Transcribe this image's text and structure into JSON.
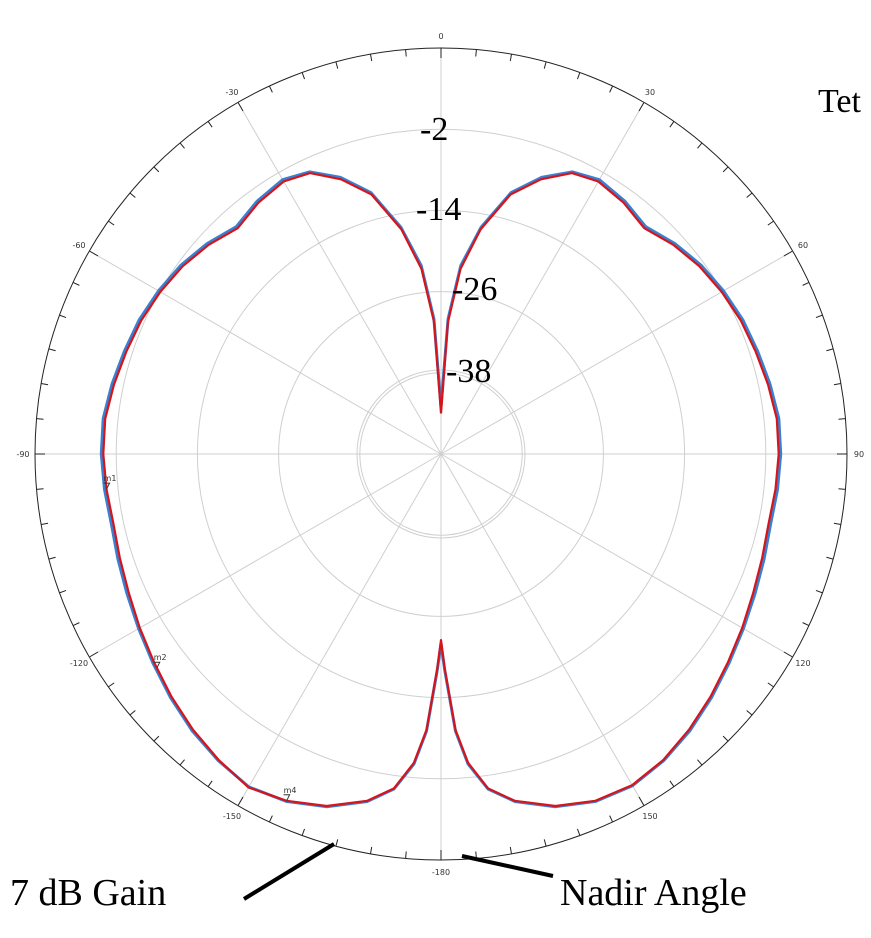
{
  "chart_data": {
    "type": "polar-line",
    "title": "Tet",
    "radial_axis": {
      "ring_labels": [
        "-2",
        "-14",
        "-26",
        "-38"
      ],
      "ring_values": [
        -2,
        -14,
        -26,
        -38
      ],
      "range": [
        -50,
        10
      ]
    },
    "angular_axis": {
      "tick_labels": [
        "0",
        "30",
        "60",
        "90",
        "120",
        "150",
        "-180",
        "-150",
        "-120",
        "-90",
        "-60",
        "-30"
      ],
      "tick_values": [
        0,
        30,
        60,
        90,
        120,
        150,
        180,
        -150,
        -120,
        -90,
        -60,
        -30
      ],
      "direction": "clockwise",
      "zero_position": "top",
      "grid": true
    },
    "series": [
      {
        "color": "#3a7fd0",
        "angles": [
          0,
          3,
          6,
          10,
          15,
          20,
          25,
          30,
          36,
          42,
          48,
          54,
          60,
          66,
          72,
          78,
          84,
          90,
          96,
          102,
          108,
          114,
          120,
          126,
          132,
          138,
          144,
          150,
          156,
          162,
          168,
          172,
          175,
          177,
          179,
          180,
          181,
          183,
          185,
          188,
          192,
          198,
          204,
          210,
          216,
          222,
          228,
          234,
          240,
          246,
          252,
          258,
          264,
          270,
          276,
          282,
          288,
          294,
          300,
          306,
          312,
          318,
          324,
          330,
          335,
          340,
          345,
          350,
          354,
          357,
          360
        ],
        "values": [
          -43,
          -30,
          -22,
          -16,
          -10,
          -6.5,
          -4,
          -3.2,
          -3.8,
          -4.8,
          -3.5,
          -2.5,
          -1.8,
          -1.2,
          -0.8,
          -0.3,
          0.2,
          0.2,
          0.0,
          -0.2,
          0.2,
          0.8,
          1.6,
          2.6,
          3.8,
          5.0,
          6.0,
          6.6,
          6.2,
          4.8,
          2.5,
          0.0,
          -4,
          -9,
          -18,
          -22,
          -18,
          -9,
          -4,
          0.0,
          2.5,
          4.8,
          6.2,
          6.8,
          6.0,
          5.0,
          3.8,
          2.6,
          1.6,
          0.8,
          0.2,
          -0.2,
          0.0,
          0.2,
          0.2,
          -0.3,
          -0.8,
          -1.2,
          -1.8,
          -2.5,
          -3.5,
          -4.8,
          -3.8,
          -3.2,
          -4,
          -6.5,
          -10,
          -16,
          -22,
          -30,
          -43
        ]
      },
      {
        "color": "#d6151b",
        "angles": [
          0,
          3,
          6,
          10,
          15,
          20,
          25,
          30,
          36,
          42,
          48,
          54,
          60,
          66,
          72,
          78,
          84,
          90,
          96,
          102,
          108,
          114,
          120,
          126,
          132,
          138,
          144,
          150,
          156,
          162,
          168,
          172,
          175,
          177,
          179,
          180,
          181,
          183,
          185,
          188,
          192,
          198,
          204,
          210,
          216,
          222,
          228,
          234,
          240,
          246,
          252,
          258,
          264,
          270,
          276,
          282,
          288,
          294,
          300,
          306,
          312,
          318,
          324,
          330,
          335,
          340,
          345,
          350,
          354,
          357,
          360
        ],
        "values": [
          -44,
          -30.5,
          -22.5,
          -16.3,
          -10.3,
          -6.8,
          -4.2,
          -3.5,
          -4.1,
          -5.1,
          -3.8,
          -2.8,
          -2.1,
          -1.5,
          -1.1,
          -0.6,
          -0.1,
          -0.1,
          -0.3,
          -0.5,
          -0.1,
          0.5,
          1.4,
          2.4,
          3.6,
          4.8,
          5.9,
          6.5,
          6.1,
          4.7,
          2.4,
          -0.1,
          -4.2,
          -9.2,
          -18.3,
          -22.5,
          -18.3,
          -9.2,
          -4.2,
          -0.1,
          2.4,
          4.7,
          6.1,
          6.9,
          5.9,
          4.8,
          3.6,
          2.4,
          1.4,
          0.5,
          -0.1,
          -0.5,
          -0.3,
          -0.1,
          -0.1,
          -0.6,
          -1.1,
          -1.5,
          -2.1,
          -2.8,
          -3.8,
          -5.1,
          -4.1,
          -3.5,
          -4.2,
          -6.8,
          -10.3,
          -16.3,
          -22.5,
          -30.5,
          -44
        ]
      }
    ],
    "markers": [
      {
        "label": "m1",
        "angle": -96
      },
      {
        "label": "m2",
        "angle": -127
      },
      {
        "label": "m4",
        "angle": -156
      }
    ],
    "annotations": [
      {
        "text": "7 dB Gain"
      },
      {
        "text": "Nadir Angle"
      }
    ]
  }
}
